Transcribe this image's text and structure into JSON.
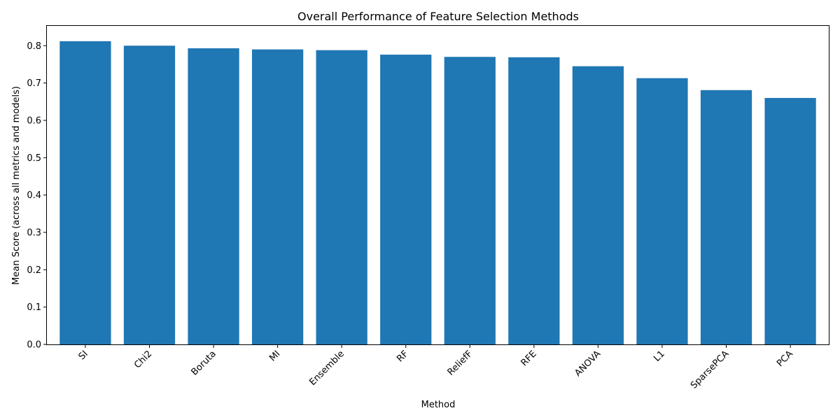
{
  "chart_data": {
    "type": "bar",
    "title": "Overall Performance of Feature Selection Methods",
    "xlabel": "Method",
    "ylabel": "Mean Score (across all metrics and models)",
    "categories": [
      "SI",
      "Chi2",
      "Boruta",
      "MI",
      "Ensemble",
      "RF",
      "ReliefF",
      "RFE",
      "ANOVA",
      "L1",
      "SparsePCA",
      "PCA"
    ],
    "values": [
      0.812,
      0.8,
      0.793,
      0.79,
      0.788,
      0.776,
      0.77,
      0.769,
      0.745,
      0.713,
      0.681,
      0.66
    ],
    "yticks": [
      "0.0",
      "0.1",
      "0.2",
      "0.3",
      "0.4",
      "0.5",
      "0.6",
      "0.7",
      "0.8"
    ],
    "ylim": [
      0,
      0.853
    ],
    "bar_color": "#1f77b4",
    "grid": false,
    "legend": false
  }
}
